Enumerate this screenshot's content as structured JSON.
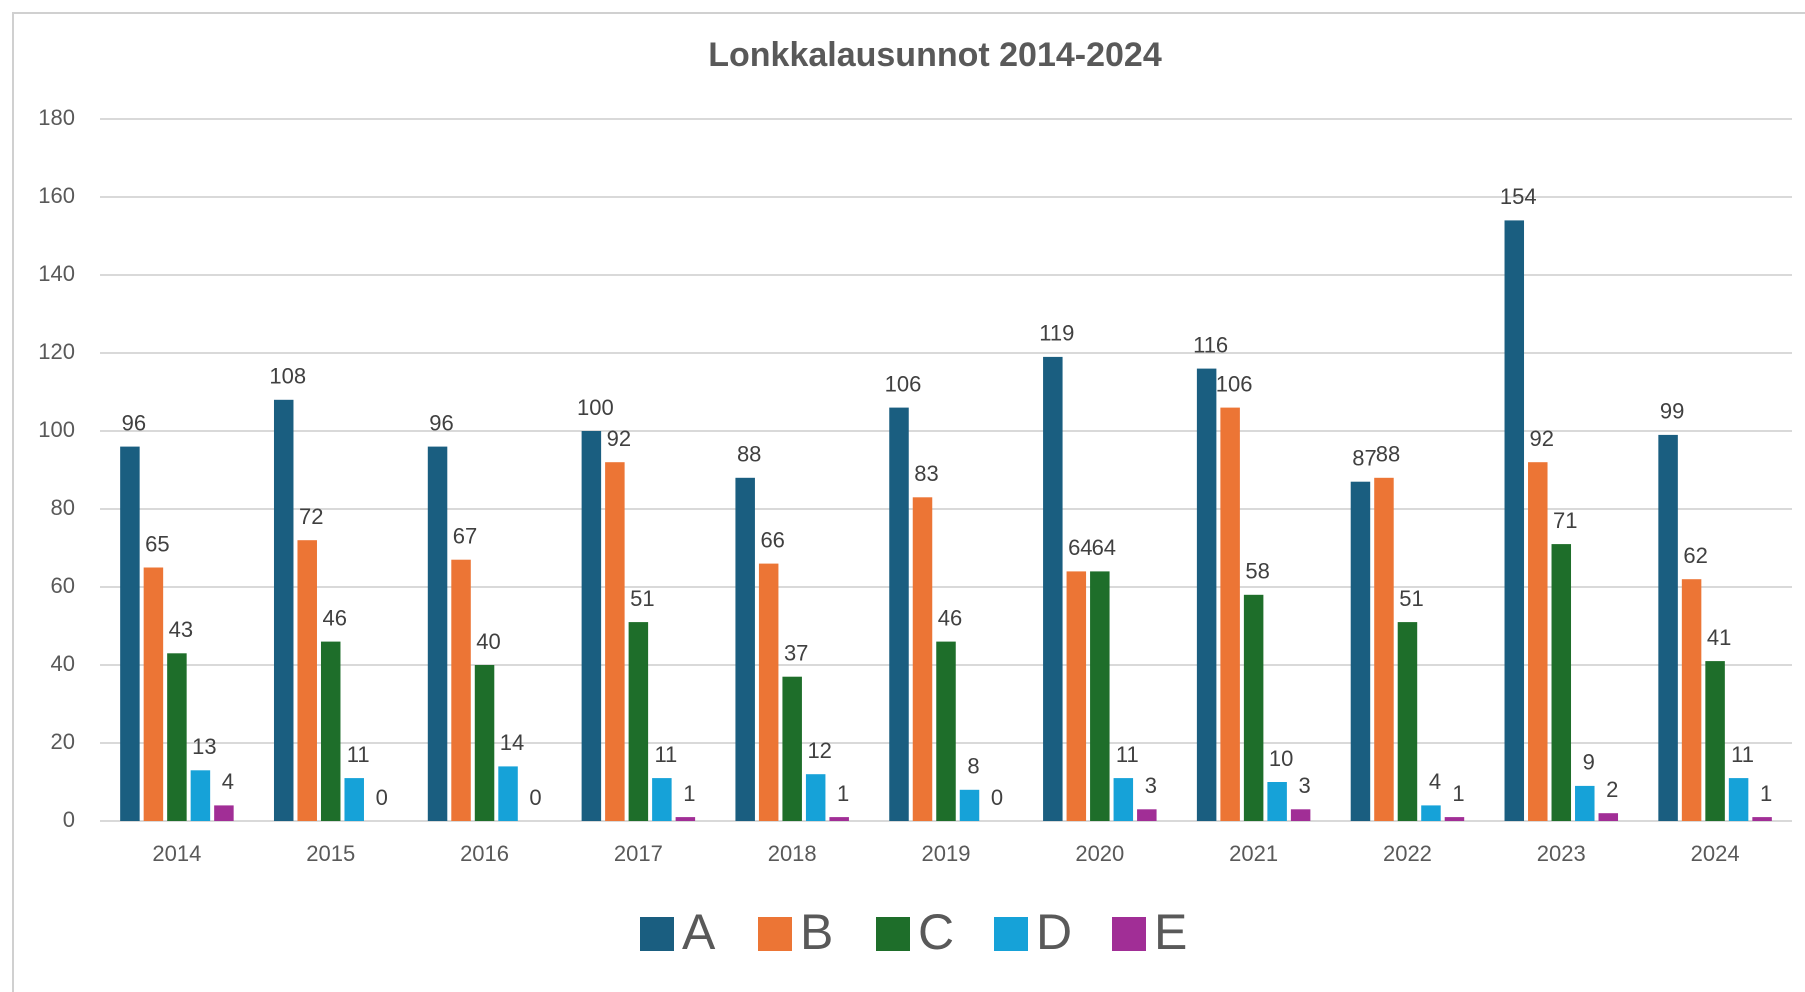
{
  "chart_data": {
    "type": "bar",
    "title": "Lonkkalausunnot 2014-2024",
    "categories": [
      "2014",
      "2015",
      "2016",
      "2017",
      "2018",
      "2019",
      "2020",
      "2021",
      "2022",
      "2023",
      "2024"
    ],
    "series": [
      {
        "name": "A",
        "color": "#1a5e80",
        "values": [
          96,
          108,
          96,
          100,
          88,
          106,
          119,
          116,
          87,
          154,
          99
        ]
      },
      {
        "name": "B",
        "color": "#ec7535",
        "values": [
          65,
          72,
          67,
          92,
          66,
          83,
          64,
          106,
          88,
          92,
          62
        ]
      },
      {
        "name": "C",
        "color": "#1e6e2a",
        "values": [
          43,
          46,
          40,
          51,
          37,
          46,
          64,
          58,
          51,
          71,
          41
        ]
      },
      {
        "name": "D",
        "color": "#16a2d8",
        "values": [
          13,
          11,
          14,
          11,
          12,
          8,
          11,
          10,
          4,
          9,
          11
        ]
      },
      {
        "name": "E",
        "color": "#a12e96",
        "values": [
          4,
          0,
          0,
          1,
          1,
          0,
          3,
          3,
          1,
          2,
          1
        ]
      }
    ],
    "ylim": [
      0,
      180
    ],
    "yticks": [
      0,
      20,
      40,
      60,
      80,
      100,
      120,
      140,
      160,
      180
    ],
    "grid": true,
    "legend": "bottom"
  }
}
